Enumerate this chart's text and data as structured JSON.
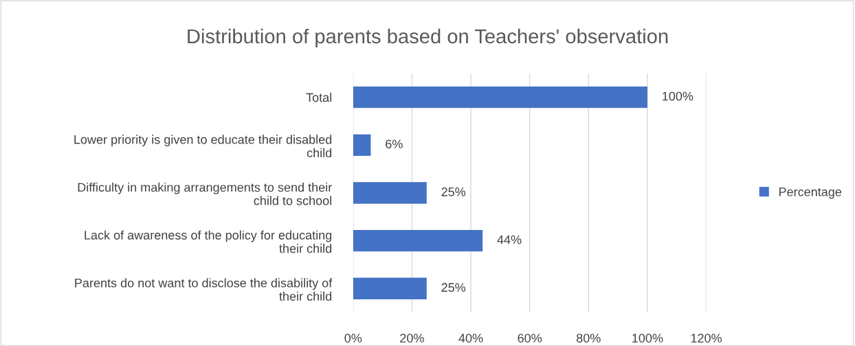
{
  "chart_data": {
    "type": "bar",
    "orientation": "horizontal",
    "title": "Distribution of parents based on Teachers' observation",
    "categories": [
      "Total",
      "Lower priority is given to educate their disabled child",
      "Difficulty in making arrangements to send their child to school",
      "Lack of awareness of the policy for educating their child",
      "Parents do not want to disclose the disability of their child"
    ],
    "series": [
      {
        "name": "Percentage",
        "color": "#4472c4",
        "values": [
          100,
          6,
          25,
          44,
          25
        ],
        "value_labels": [
          "100%",
          "6%",
          "25%",
          "44%",
          "25%"
        ]
      }
    ],
    "xlim": [
      0,
      120
    ],
    "xticks": [
      {
        "value": 0,
        "label": "0%"
      },
      {
        "value": 20,
        "label": "20%"
      },
      {
        "value": 40,
        "label": "40%"
      },
      {
        "value": 60,
        "label": "60%"
      },
      {
        "value": 80,
        "label": "80%"
      },
      {
        "value": 100,
        "label": "100%"
      },
      {
        "value": 120,
        "label": "120%"
      }
    ],
    "grid": "x",
    "legend": "right"
  }
}
